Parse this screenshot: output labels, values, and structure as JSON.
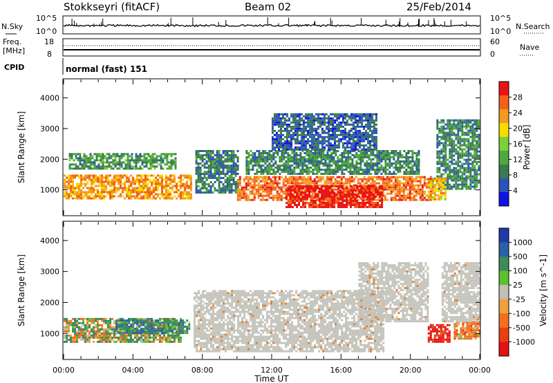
{
  "header": {
    "station": "Stokkseyri (fitACF)",
    "beam": "Beam 02",
    "date": "25/Feb/2014"
  },
  "panels": {
    "nsky": {
      "left_label": "N.Sky",
      "right_label": "N.Search",
      "ticks_left": [
        "10^5",
        "10^0"
      ],
      "ticks_right": [
        "10^5",
        "10^0"
      ]
    },
    "freq": {
      "left_label_1": "Freq.",
      "left_label_2": "[MHz]",
      "right_label": "Nave",
      "ticks_left": [
        "18",
        "8"
      ],
      "ticks_right": [
        "60",
        "0"
      ]
    },
    "cpid": {
      "label": "CPID",
      "text": "normal (fast) 151"
    }
  },
  "colors": {
    "power_scale": [
      "#1010e8",
      "#2a55b8",
      "#3c7a50",
      "#4ea83c",
      "#7cd03a",
      "#f5dc00",
      "#f59a20",
      "#f56018",
      "#e81414"
    ],
    "velocity_scale": [
      "#1e3ca8",
      "#2a62a8",
      "#3e8a5a",
      "#5cc030",
      "#c0c0b8",
      "#f0a040",
      "#f07020",
      "#e84010",
      "#e81010"
    ]
  },
  "chart_data": [
    {
      "type": "heatmap",
      "title": "",
      "xlabel": "",
      "ylabel": "Slant Range [km]",
      "xlim": [
        "00:00",
        "24:00"
      ],
      "ylim": [
        180,
        4600
      ],
      "x_ticks": [
        "00:00",
        "04:00",
        "08:00",
        "12:00",
        "16:00",
        "20:00",
        "00:00"
      ],
      "y_ticks": [
        "1000",
        "2000",
        "3000",
        "4000"
      ],
      "colorbar": {
        "label": "Power [dB]",
        "ticks": [
          "4",
          "8",
          "12",
          "16",
          "20",
          "24",
          "28"
        ],
        "range": [
          0,
          30
        ]
      },
      "regions": [
        {
          "t0": 0.0,
          "t1": 7.3,
          "r0": 750,
          "r1": 1500,
          "level": 22
        },
        {
          "t0": 0.3,
          "t1": 6.5,
          "r0": 1700,
          "r1": 2200,
          "level": 10
        },
        {
          "t0": 7.6,
          "t1": 10.0,
          "r0": 900,
          "r1": 2300,
          "level": 8
        },
        {
          "t0": 10.0,
          "t1": 21.2,
          "r0": 700,
          "r1": 1450,
          "level": 24
        },
        {
          "t0": 12.8,
          "t1": 18.4,
          "r0": 420,
          "r1": 1150,
          "level": 29
        },
        {
          "t0": 10.5,
          "t1": 20.5,
          "r0": 1500,
          "r1": 2300,
          "level": 9
        },
        {
          "t0": 12.0,
          "t1": 18.0,
          "r0": 2300,
          "r1": 3500,
          "level": 6
        },
        {
          "t0": 21.5,
          "t1": 24.0,
          "r0": 1000,
          "r1": 3300,
          "level": 9
        },
        {
          "t0": 21.0,
          "t1": 22.0,
          "r0": 700,
          "r1": 1400,
          "level": 20
        }
      ]
    },
    {
      "type": "heatmap",
      "title": "",
      "xlabel": "Time UT",
      "ylabel": "Slant Range [km]",
      "xlim": [
        "00:00",
        "24:00"
      ],
      "ylim": [
        180,
        4600
      ],
      "x_ticks": [
        "00:00",
        "04:00",
        "08:00",
        "12:00",
        "16:00",
        "20:00",
        "00:00"
      ],
      "y_ticks": [
        "1000",
        "2000",
        "3000",
        "4000"
      ],
      "colorbar": {
        "label": "Velocity [m s^-1]",
        "ticks": [
          "1000",
          "500",
          "100",
          "25",
          "-25",
          "-100",
          "-500",
          "-1000"
        ],
        "range": [
          -1200,
          1200
        ]
      },
      "regions": [
        {
          "t0": 0.0,
          "t1": 6.8,
          "r0": 750,
          "r1": 1500,
          "level": 80
        },
        {
          "t0": 3.0,
          "t1": 7.3,
          "r0": 1000,
          "r1": 1450,
          "level": 300
        },
        {
          "t0": 7.5,
          "t1": 18.5,
          "r0": 400,
          "r1": 2400,
          "level": 0
        },
        {
          "t0": 17.0,
          "t1": 21.0,
          "r0": 1400,
          "r1": 3300,
          "level": 0
        },
        {
          "t0": 21.0,
          "t1": 22.2,
          "r0": 700,
          "r1": 1300,
          "level": -900
        },
        {
          "t0": 22.5,
          "t1": 24.0,
          "r0": 800,
          "r1": 1400,
          "level": -200
        },
        {
          "t0": 21.8,
          "t1": 24.0,
          "r0": 1400,
          "r1": 3300,
          "level": 0
        }
      ]
    }
  ]
}
